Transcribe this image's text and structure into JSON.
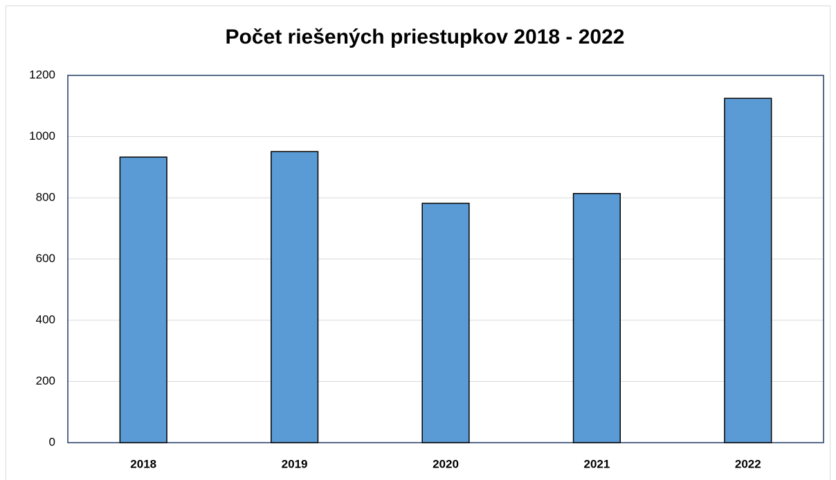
{
  "chart_data": {
    "type": "bar",
    "title": "Počet riešených priestupkov 2018 - 2022",
    "categories": [
      "2018",
      "2019",
      "2020",
      "2021",
      "2022"
    ],
    "values": [
      933,
      951,
      782,
      814,
      1125
    ],
    "color": "#5b9bd5",
    "ylim": [
      0,
      1200
    ],
    "yticks": [
      0,
      200,
      400,
      600,
      800,
      1000,
      1200
    ],
    "grid": true
  }
}
